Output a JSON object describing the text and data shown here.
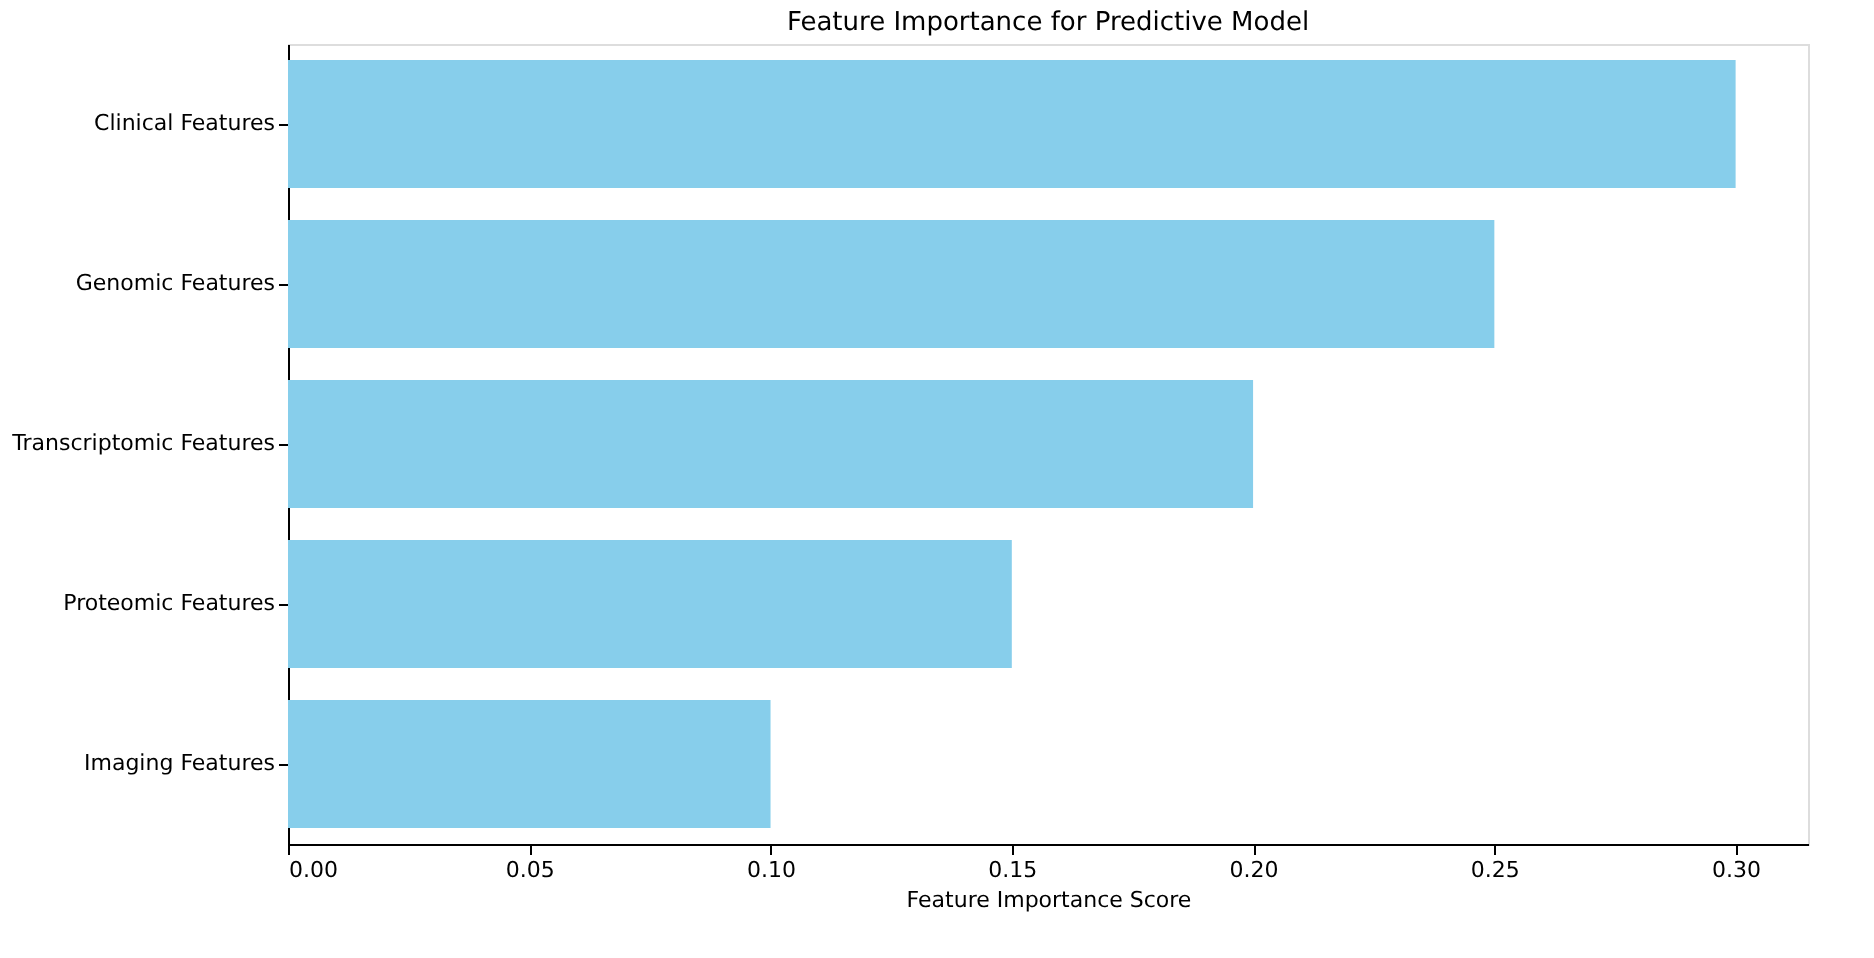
{
  "chart_data": {
    "type": "bar",
    "orientation": "horizontal",
    "title": "Feature Importance for Predictive Model",
    "xlabel": "Feature Importance Score",
    "categories": [
      "Clinical Features",
      "Genomic Features",
      "Transcriptomic Features",
      "Proteomic Features",
      "Imaging Features"
    ],
    "values": [
      0.3,
      0.25,
      0.2,
      0.15,
      0.1
    ],
    "color": "#87ceeb",
    "xlim": [
      0,
      0.315
    ],
    "xticks": [
      {
        "value": 0,
        "label": "0.00"
      },
      {
        "value": 0.05,
        "label": "0.05"
      },
      {
        "value": 0.1,
        "label": "0.10"
      },
      {
        "value": 0.15,
        "label": "0.15"
      },
      {
        "value": 0.2,
        "label": "0.20"
      },
      {
        "value": 0.25,
        "label": "0.25"
      },
      {
        "value": 0.3,
        "label": "0.30"
      }
    ],
    "grid": false
  }
}
